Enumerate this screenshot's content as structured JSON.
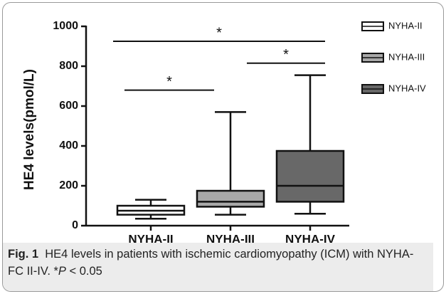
{
  "chart_data": {
    "type": "box",
    "ylabel": "HE4 levels(pmol/L)",
    "categories": [
      "NYHA-II",
      "NYHA-III",
      "NYHA-IV"
    ],
    "series": [
      {
        "name": "NYHA-II",
        "color": "#ffffff",
        "min": 35,
        "q1": 55,
        "median": 75,
        "q3": 100,
        "max": 130
      },
      {
        "name": "NYHA-III",
        "color": "#a8a8a8",
        "min": 55,
        "q1": 95,
        "median": 120,
        "q3": 175,
        "max": 570
      },
      {
        "name": "NYHA-IV",
        "color": "#686868",
        "min": 60,
        "q1": 120,
        "median": 200,
        "q3": 375,
        "max": 755
      }
    ],
    "ylim": [
      0,
      1000
    ],
    "yticks": [
      0,
      200,
      400,
      600,
      800,
      1000
    ],
    "annotations": [
      {
        "text": "*",
        "y": 680,
        "from": "NYHA-II",
        "to": "NYHA-III"
      },
      {
        "text": "*",
        "y": 815,
        "from": "NYHA-III",
        "to": "NYHA-IV"
      },
      {
        "text": "*",
        "y": 925,
        "from": "NYHA-II",
        "to": "NYHA-IV"
      }
    ]
  },
  "caption": {
    "label": "Fig. 1",
    "text": "HE4 levels in patients with ischemic cardiomyopathy (ICM) with NYHA-FC II-IV. *",
    "italic": "P",
    "tail": " < 0.05"
  }
}
